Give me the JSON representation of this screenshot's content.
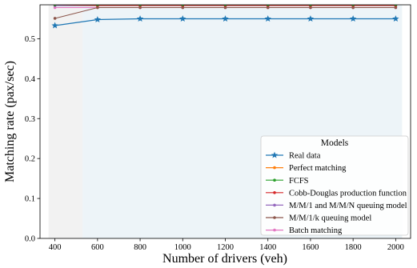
{
  "chart_data": {
    "type": "line",
    "title": "",
    "xlabel": "Number of drivers (veh)",
    "ylabel": "Matching rate (pax/sec)",
    "xlim": [
      330,
      2070
    ],
    "ylim": [
      0.0,
      0.585
    ],
    "xticks": [
      400,
      600,
      800,
      1000,
      1200,
      1400,
      1600,
      1800,
      2000
    ],
    "yticks": [
      0.0,
      0.1,
      0.2,
      0.3,
      0.4,
      0.5
    ],
    "ytick_labels": [
      "0.0",
      "0.1",
      "0.2",
      "0.3",
      "0.4",
      "0.5"
    ],
    "grid": false,
    "legend": {
      "title": "Models",
      "placement": "lower-right"
    },
    "shaded_regions": [
      {
        "x_from": 370,
        "x_to": 530,
        "color": "#dedede"
      },
      {
        "x_from": 530,
        "x_to": 2030,
        "color": "#cfe2ec"
      }
    ],
    "x": [
      400,
      600,
      800,
      1000,
      1200,
      1400,
      1600,
      1800,
      2000
    ],
    "series": [
      {
        "name": "Real data",
        "color": "#1f77b4",
        "marker": "star",
        "values": [
          0.533,
          0.548,
          0.55,
          0.55,
          0.55,
          0.55,
          0.55,
          0.55,
          0.55
        ]
      },
      {
        "name": "Perfect matching",
        "color": "#ff7f0e",
        "marker": "dot",
        "values": [
          0.59,
          0.59,
          0.59,
          0.59,
          0.59,
          0.59,
          0.59,
          0.59,
          0.59
        ]
      },
      {
        "name": "FCFS",
        "color": "#2ca02c",
        "marker": "dot",
        "values": [
          0.585,
          0.585,
          0.585,
          0.585,
          0.585,
          0.585,
          0.585,
          0.585,
          0.585
        ]
      },
      {
        "name": "Cobb-Douglas production function",
        "color": "#d62728",
        "marker": "dot",
        "values": [
          0.585,
          0.583,
          0.583,
          0.583,
          0.583,
          0.583,
          0.583,
          0.583,
          0.583
        ]
      },
      {
        "name": "M/M/1 and M/M/N queuing model",
        "color": "#9467bd",
        "marker": "dot",
        "values": [
          0.583,
          0.583,
          0.583,
          0.583,
          0.583,
          0.583,
          0.583,
          0.583,
          0.583
        ]
      },
      {
        "name": "M/M/1/k queuing model",
        "color": "#8c564b",
        "marker": "dot",
        "values": [
          0.551,
          0.578,
          0.578,
          0.578,
          0.578,
          0.578,
          0.578,
          0.578,
          0.578
        ]
      },
      {
        "name": "Batch matching",
        "color": "#e377c2",
        "marker": "dot",
        "values": [
          0.578,
          0.578,
          0.578,
          0.578,
          0.578,
          0.578,
          0.578,
          0.578,
          0.578
        ]
      }
    ]
  }
}
